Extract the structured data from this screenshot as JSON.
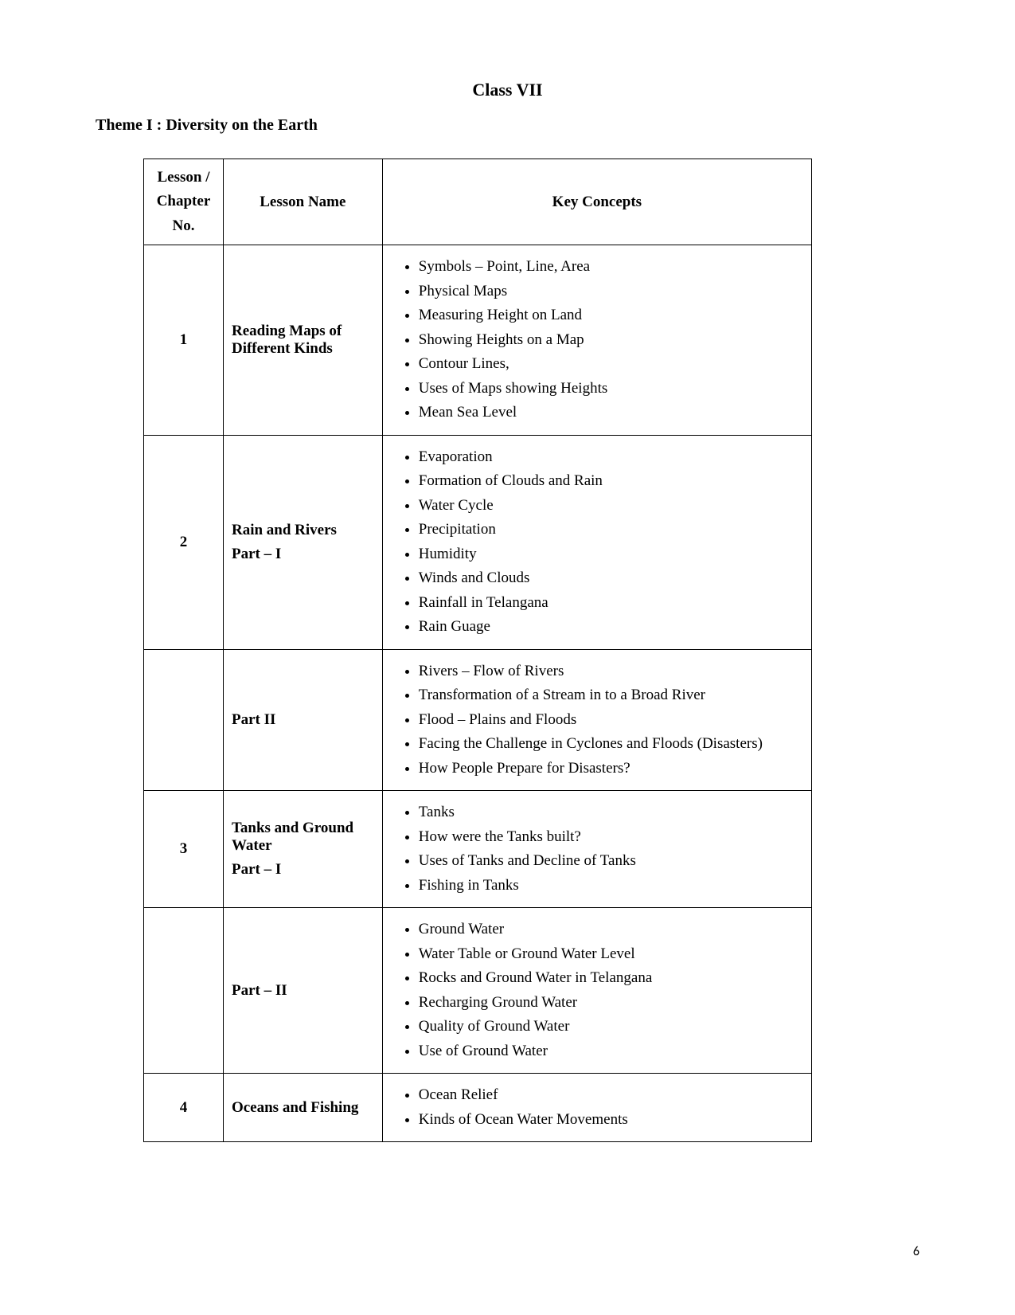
{
  "page_title": "Class VII",
  "theme_heading": "Theme I : Diversity on the Earth",
  "page_number": "6",
  "table": {
    "headers": {
      "chapter": "Lesson / Chapter No.",
      "lesson": "Lesson Name",
      "concepts": "Key Concepts"
    },
    "rows": [
      {
        "chapter": "1",
        "lesson": "Reading Maps of Different  Kinds",
        "concepts": [
          "Symbols – Point, Line, Area",
          "Physical Maps",
          "Measuring Height on Land",
          "Showing Heights on a Map",
          "Contour Lines,",
          "Uses of Maps showing Heights",
          "Mean Sea Level"
        ]
      },
      {
        "chapter": "2",
        "lesson": "Rain and Rivers\nPart – I",
        "concepts": [
          "Evaporation",
          "Formation of Clouds and Rain",
          "Water Cycle",
          "Precipitation",
          "Humidity",
          "Winds and Clouds",
          "Rainfall in Telangana",
          "Rain Guage"
        ]
      },
      {
        "chapter": "",
        "lesson": "Part II",
        "concepts": [
          "Rivers – Flow of Rivers",
          "Transformation of a Stream in to a Broad River",
          "Flood – Plains and Floods",
          "Facing the Challenge in Cyclones and Floods (Disasters)",
          "How People Prepare for Disasters?"
        ]
      },
      {
        "chapter": "3",
        "lesson": "Tanks and Ground Water\nPart – I",
        "concepts": [
          "Tanks",
          "How were the Tanks built?",
          "Uses of Tanks and Decline of Tanks",
          "Fishing in Tanks"
        ]
      },
      {
        "chapter": "",
        "lesson": "Part – II",
        "concepts": [
          "Ground Water",
          "Water Table or Ground Water Level",
          "Rocks and Ground Water in Telangana",
          "Recharging Ground Water",
          "Quality of Ground Water",
          "Use of Ground Water"
        ]
      },
      {
        "chapter": "4",
        "lesson": "Oceans and Fishing",
        "concepts": [
          "Ocean Relief",
          "Kinds of Ocean Water Movements"
        ]
      }
    ]
  }
}
